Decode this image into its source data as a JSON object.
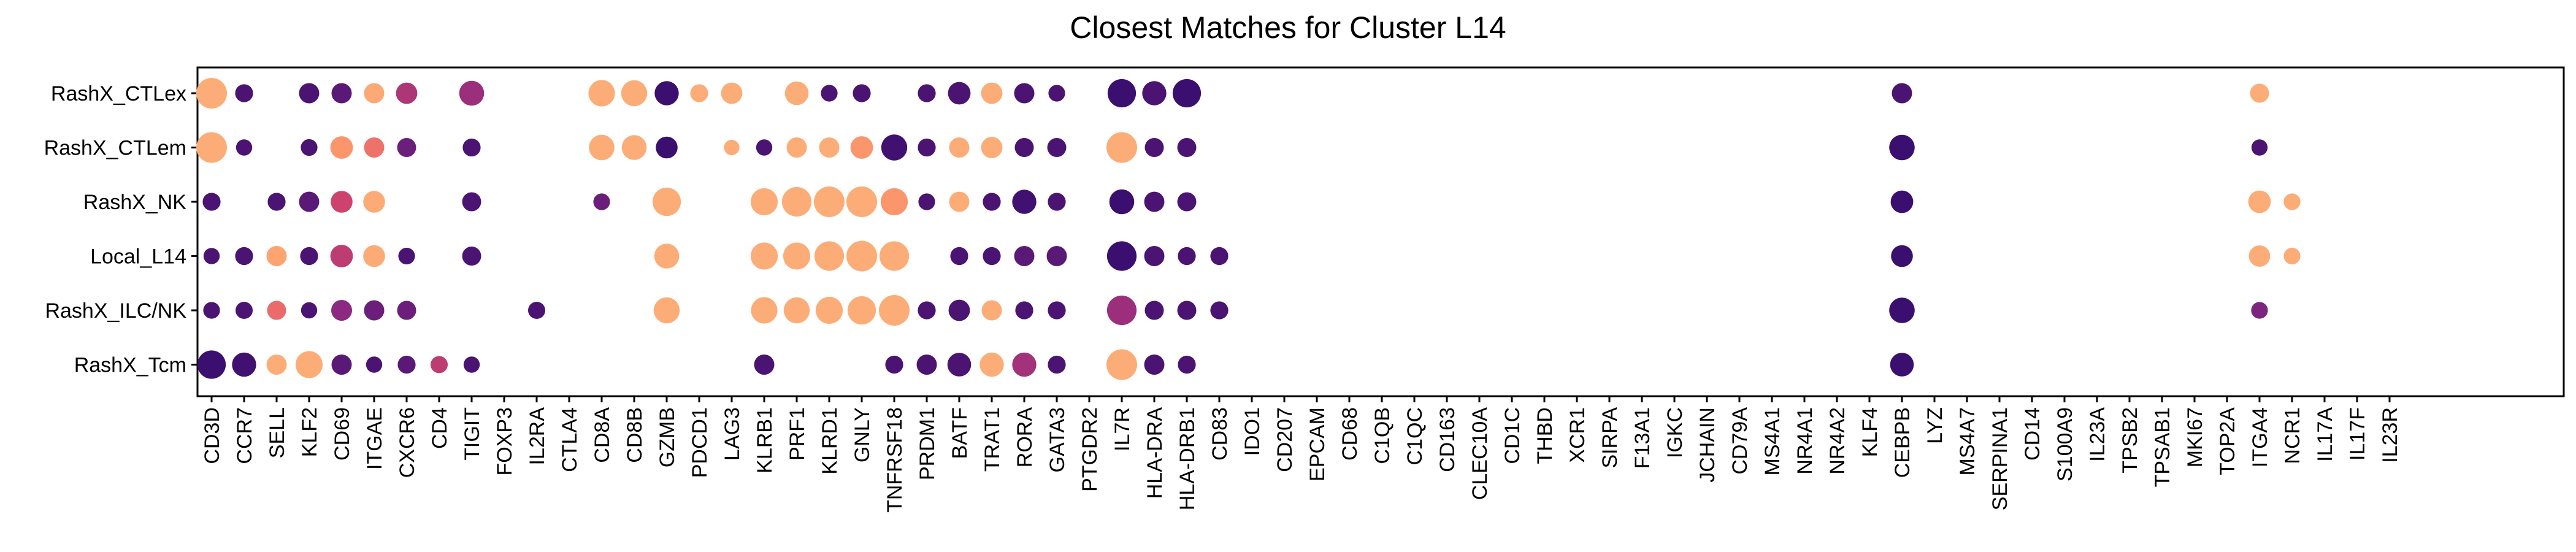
{
  "chart_data": {
    "type": "dotplot",
    "title": "Closest Matches for Cluster L14",
    "xlabel": "",
    "ylabel": "",
    "grid": false,
    "legend": "none",
    "rows": [
      "RashX_CTLex",
      "RashX_CTLem",
      "RashX_NK",
      "Local_L14",
      "RashX_ILC/NK",
      "RashX_Tcm"
    ],
    "genes": [
      "CD3D",
      "CCR7",
      "SELL",
      "KLF2",
      "CD69",
      "ITGAE",
      "CXCR6",
      "CD4",
      "TIGIT",
      "FOXP3",
      "IL2RA",
      "CTLA4",
      "CD8A",
      "CD8B",
      "GZMB",
      "PDCD1",
      "LAG3",
      "KLRB1",
      "PRF1",
      "KLRD1",
      "GNLY",
      "TNFRSF18",
      "PRDM1",
      "BATF",
      "TRAT1",
      "RORA",
      "GATA3",
      "PTGDR2",
      "IL7R",
      "HLA-DRA",
      "HLA-DRB1",
      "CD83",
      "IDO1",
      "CD207",
      "EPCAM",
      "CD68",
      "C1QB",
      "C1QC",
      "CD163",
      "CLEC10A",
      "CD1C",
      "THBD",
      "XCR1",
      "SIRPA",
      "F13A1",
      "IGKC",
      "JCHAIN",
      "CD79A",
      "MS4A1",
      "NR4A1",
      "NR4A2",
      "KLF4",
      "CEBPB",
      "LYZ",
      "MS4A7",
      "SERPINA1",
      "CD14",
      "S100A9",
      "IL23A",
      "TPSB2",
      "TPSAB1",
      "MKI67",
      "TOP2A",
      "ITGA4",
      "NCR1",
      "IL17A",
      "IL17F",
      "IL23R"
    ],
    "size_scale_note": "size = relative dot size 0-1; color = 0 (dark purple) to 1 (light orange)",
    "color_scale": [
      "#3b0f70",
      "#8c2981",
      "#de4968",
      "#fe9f6d",
      "#fcb07a"
    ],
    "points": [
      {
        "row": "RashX_CTLex",
        "gene": "CD3D",
        "size": 1.0,
        "color": 0.95
      },
      {
        "row": "RashX_CTLex",
        "gene": "CCR7",
        "size": 0.45,
        "color": 0.05
      },
      {
        "row": "RashX_CTLex",
        "gene": "KLF2",
        "size": 0.55,
        "color": 0.05
      },
      {
        "row": "RashX_CTLex",
        "gene": "CD69",
        "size": 0.55,
        "color": 0.1
      },
      {
        "row": "RashX_CTLex",
        "gene": "ITGAE",
        "size": 0.55,
        "color": 0.9
      },
      {
        "row": "RashX_CTLex",
        "gene": "CXCR6",
        "size": 0.6,
        "color": 0.35
      },
      {
        "row": "RashX_CTLex",
        "gene": "TIGIT",
        "size": 0.75,
        "color": 0.3
      },
      {
        "row": "RashX_CTLex",
        "gene": "CD8A",
        "size": 0.82,
        "color": 0.95
      },
      {
        "row": "RashX_CTLex",
        "gene": "CD8B",
        "size": 0.8,
        "color": 0.95
      },
      {
        "row": "RashX_CTLex",
        "gene": "GZMB",
        "size": 0.72,
        "color": 0.0
      },
      {
        "row": "RashX_CTLex",
        "gene": "PDCD1",
        "size": 0.45,
        "color": 0.95
      },
      {
        "row": "RashX_CTLex",
        "gene": "LAG3",
        "size": 0.6,
        "color": 0.95
      },
      {
        "row": "RashX_CTLex",
        "gene": "PRF1",
        "size": 0.7,
        "color": 0.95
      },
      {
        "row": "RashX_CTLex",
        "gene": "KLRD1",
        "size": 0.4,
        "color": 0.05
      },
      {
        "row": "RashX_CTLex",
        "gene": "GNLY",
        "size": 0.45,
        "color": 0.05
      },
      {
        "row": "RashX_CTLex",
        "gene": "PRDM1",
        "size": 0.45,
        "color": 0.05
      },
      {
        "row": "RashX_CTLex",
        "gene": "BATF",
        "size": 0.65,
        "color": 0.05
      },
      {
        "row": "RashX_CTLex",
        "gene": "TRAT1",
        "size": 0.6,
        "color": 0.95
      },
      {
        "row": "RashX_CTLex",
        "gene": "RORA",
        "size": 0.55,
        "color": 0.05
      },
      {
        "row": "RashX_CTLex",
        "gene": "GATA3",
        "size": 0.4,
        "color": 0.05
      },
      {
        "row": "RashX_CTLex",
        "gene": "IL7R",
        "size": 0.9,
        "color": 0.0
      },
      {
        "row": "RashX_CTLex",
        "gene": "HLA-DRA",
        "size": 0.72,
        "color": 0.05
      },
      {
        "row": "RashX_CTLex",
        "gene": "HLA-DRB1",
        "size": 0.9,
        "color": 0.0
      },
      {
        "row": "RashX_CTLex",
        "gene": "CEBPB",
        "size": 0.55,
        "color": 0.05
      },
      {
        "row": "RashX_CTLex",
        "gene": "ITGA4",
        "size": 0.5,
        "color": 0.95
      },
      {
        "row": "RashX_CTLem",
        "gene": "CD3D",
        "size": 1.0,
        "color": 0.95
      },
      {
        "row": "RashX_CTLem",
        "gene": "CCR7",
        "size": 0.38,
        "color": 0.05
      },
      {
        "row": "RashX_CTLem",
        "gene": "KLF2",
        "size": 0.4,
        "color": 0.05
      },
      {
        "row": "RashX_CTLem",
        "gene": "CD69",
        "size": 0.65,
        "color": 0.72
      },
      {
        "row": "RashX_CTLem",
        "gene": "ITGAE",
        "size": 0.55,
        "color": 0.62
      },
      {
        "row": "RashX_CTLem",
        "gene": "CXCR6",
        "size": 0.5,
        "color": 0.15
      },
      {
        "row": "RashX_CTLem",
        "gene": "TIGIT",
        "size": 0.45,
        "color": 0.05
      },
      {
        "row": "RashX_CTLem",
        "gene": "CD8A",
        "size": 0.78,
        "color": 0.95
      },
      {
        "row": "RashX_CTLem",
        "gene": "CD8B",
        "size": 0.75,
        "color": 0.95
      },
      {
        "row": "RashX_CTLem",
        "gene": "GZMB",
        "size": 0.62,
        "color": 0.0
      },
      {
        "row": "RashX_CTLem",
        "gene": "LAG3",
        "size": 0.35,
        "color": 0.95
      },
      {
        "row": "RashX_CTLem",
        "gene": "KLRB1",
        "size": 0.38,
        "color": 0.05
      },
      {
        "row": "RashX_CTLem",
        "gene": "PRF1",
        "size": 0.55,
        "color": 0.95
      },
      {
        "row": "RashX_CTLem",
        "gene": "KLRD1",
        "size": 0.55,
        "color": 0.95
      },
      {
        "row": "RashX_CTLem",
        "gene": "GNLY",
        "size": 0.65,
        "color": 0.72
      },
      {
        "row": "RashX_CTLem",
        "gene": "TNFRSF18",
        "size": 0.8,
        "color": 0.02
      },
      {
        "row": "RashX_CTLem",
        "gene": "PRDM1",
        "size": 0.45,
        "color": 0.05
      },
      {
        "row": "RashX_CTLem",
        "gene": "BATF",
        "size": 0.55,
        "color": 0.95
      },
      {
        "row": "RashX_CTLem",
        "gene": "TRAT1",
        "size": 0.6,
        "color": 0.95
      },
      {
        "row": "RashX_CTLem",
        "gene": "RORA",
        "size": 0.5,
        "color": 0.05
      },
      {
        "row": "RashX_CTLem",
        "gene": "GATA3",
        "size": 0.5,
        "color": 0.05
      },
      {
        "row": "RashX_CTLem",
        "gene": "IL7R",
        "size": 1.0,
        "color": 0.95
      },
      {
        "row": "RashX_CTLem",
        "gene": "HLA-DRA",
        "size": 0.5,
        "color": 0.05
      },
      {
        "row": "RashX_CTLem",
        "gene": "HLA-DRB1",
        "size": 0.5,
        "color": 0.05
      },
      {
        "row": "RashX_CTLem",
        "gene": "CEBPB",
        "size": 0.78,
        "color": 0.0
      },
      {
        "row": "RashX_CTLem",
        "gene": "ITGA4",
        "size": 0.38,
        "color": 0.05
      },
      {
        "row": "RashX_NK",
        "gene": "CD3D",
        "size": 0.45,
        "color": 0.05
      },
      {
        "row": "RashX_NK",
        "gene": "SELL",
        "size": 0.45,
        "color": 0.05
      },
      {
        "row": "RashX_NK",
        "gene": "KLF2",
        "size": 0.55,
        "color": 0.1
      },
      {
        "row": "RashX_NK",
        "gene": "CD69",
        "size": 0.62,
        "color": 0.45
      },
      {
        "row": "RashX_NK",
        "gene": "ITGAE",
        "size": 0.62,
        "color": 0.92
      },
      {
        "row": "RashX_NK",
        "gene": "TIGIT",
        "size": 0.5,
        "color": 0.05
      },
      {
        "row": "RashX_NK",
        "gene": "CD8A",
        "size": 0.4,
        "color": 0.15
      },
      {
        "row": "RashX_NK",
        "gene": "GZMB",
        "size": 0.9,
        "color": 0.95
      },
      {
        "row": "RashX_NK",
        "gene": "KLRB1",
        "size": 0.85,
        "color": 0.95
      },
      {
        "row": "RashX_NK",
        "gene": "PRF1",
        "size": 0.95,
        "color": 0.95
      },
      {
        "row": "RashX_NK",
        "gene": "KLRD1",
        "size": 1.0,
        "color": 0.95
      },
      {
        "row": "RashX_NK",
        "gene": "GNLY",
        "size": 1.0,
        "color": 0.95
      },
      {
        "row": "RashX_NK",
        "gene": "TNFRSF18",
        "size": 0.85,
        "color": 0.72
      },
      {
        "row": "RashX_NK",
        "gene": "PRDM1",
        "size": 0.4,
        "color": 0.05
      },
      {
        "row": "RashX_NK",
        "gene": "BATF",
        "size": 0.55,
        "color": 0.95
      },
      {
        "row": "RashX_NK",
        "gene": "TRAT1",
        "size": 0.45,
        "color": 0.05
      },
      {
        "row": "RashX_NK",
        "gene": "RORA",
        "size": 0.72,
        "color": 0.02
      },
      {
        "row": "RashX_NK",
        "gene": "GATA3",
        "size": 0.45,
        "color": 0.05
      },
      {
        "row": "RashX_NK",
        "gene": "IL7R",
        "size": 0.75,
        "color": 0.0
      },
      {
        "row": "RashX_NK",
        "gene": "HLA-DRA",
        "size": 0.55,
        "color": 0.05
      },
      {
        "row": "RashX_NK",
        "gene": "HLA-DRB1",
        "size": 0.5,
        "color": 0.05
      },
      {
        "row": "RashX_NK",
        "gene": "CEBPB",
        "size": 0.65,
        "color": 0.0
      },
      {
        "row": "RashX_NK",
        "gene": "ITGA4",
        "size": 0.65,
        "color": 0.95
      },
      {
        "row": "RashX_NK",
        "gene": "NCR1",
        "size": 0.4,
        "color": 0.95
      },
      {
        "row": "Local_L14",
        "gene": "CD3D",
        "size": 0.38,
        "color": 0.05
      },
      {
        "row": "Local_L14",
        "gene": "CCR7",
        "size": 0.45,
        "color": 0.05
      },
      {
        "row": "Local_L14",
        "gene": "SELL",
        "size": 0.55,
        "color": 0.82
      },
      {
        "row": "Local_L14",
        "gene": "KLF2",
        "size": 0.45,
        "color": 0.05
      },
      {
        "row": "Local_L14",
        "gene": "CD69",
        "size": 0.65,
        "color": 0.4
      },
      {
        "row": "Local_L14",
        "gene": "ITGAE",
        "size": 0.62,
        "color": 0.92
      },
      {
        "row": "Local_L14",
        "gene": "CXCR6",
        "size": 0.4,
        "color": 0.05
      },
      {
        "row": "Local_L14",
        "gene": "TIGIT",
        "size": 0.5,
        "color": 0.05
      },
      {
        "row": "Local_L14",
        "gene": "GZMB",
        "size": 0.75,
        "color": 0.95
      },
      {
        "row": "Local_L14",
        "gene": "KLRB1",
        "size": 0.85,
        "color": 0.95
      },
      {
        "row": "Local_L14",
        "gene": "PRF1",
        "size": 0.85,
        "color": 0.95
      },
      {
        "row": "Local_L14",
        "gene": "KLRD1",
        "size": 0.95,
        "color": 0.95
      },
      {
        "row": "Local_L14",
        "gene": "GNLY",
        "size": 1.0,
        "color": 0.95
      },
      {
        "row": "Local_L14",
        "gene": "TNFRSF18",
        "size": 0.95,
        "color": 0.95
      },
      {
        "row": "Local_L14",
        "gene": "BATF",
        "size": 0.45,
        "color": 0.05
      },
      {
        "row": "Local_L14",
        "gene": "TRAT1",
        "size": 0.45,
        "color": 0.05
      },
      {
        "row": "Local_L14",
        "gene": "RORA",
        "size": 0.55,
        "color": 0.1
      },
      {
        "row": "Local_L14",
        "gene": "GATA3",
        "size": 0.55,
        "color": 0.1
      },
      {
        "row": "Local_L14",
        "gene": "IL7R",
        "size": 0.95,
        "color": 0.0
      },
      {
        "row": "Local_L14",
        "gene": "HLA-DRA",
        "size": 0.55,
        "color": 0.05
      },
      {
        "row": "Local_L14",
        "gene": "HLA-DRB1",
        "size": 0.45,
        "color": 0.05
      },
      {
        "row": "Local_L14",
        "gene": "CD83",
        "size": 0.45,
        "color": 0.05
      },
      {
        "row": "Local_L14",
        "gene": "CEBPB",
        "size": 0.62,
        "color": 0.0
      },
      {
        "row": "Local_L14",
        "gene": "ITGA4",
        "size": 0.6,
        "color": 0.95
      },
      {
        "row": "Local_L14",
        "gene": "NCR1",
        "size": 0.4,
        "color": 0.95
      },
      {
        "row": "RashX_ILC/NK",
        "gene": "CD3D",
        "size": 0.4,
        "color": 0.05
      },
      {
        "row": "RashX_ILC/NK",
        "gene": "CCR7",
        "size": 0.42,
        "color": 0.05
      },
      {
        "row": "RashX_ILC/NK",
        "gene": "SELL",
        "size": 0.5,
        "color": 0.6
      },
      {
        "row": "RashX_ILC/NK",
        "gene": "KLF2",
        "size": 0.38,
        "color": 0.05
      },
      {
        "row": "RashX_ILC/NK",
        "gene": "CD69",
        "size": 0.58,
        "color": 0.25
      },
      {
        "row": "RashX_ILC/NK",
        "gene": "ITGAE",
        "size": 0.55,
        "color": 0.15
      },
      {
        "row": "RashX_ILC/NK",
        "gene": "CXCR6",
        "size": 0.5,
        "color": 0.15
      },
      {
        "row": "RashX_ILC/NK",
        "gene": "IL2RA",
        "size": 0.42,
        "color": 0.05
      },
      {
        "row": "RashX_ILC/NK",
        "gene": "GZMB",
        "size": 0.8,
        "color": 0.95
      },
      {
        "row": "RashX_ILC/NK",
        "gene": "KLRB1",
        "size": 0.82,
        "color": 0.95
      },
      {
        "row": "RashX_ILC/NK",
        "gene": "PRF1",
        "size": 0.8,
        "color": 0.95
      },
      {
        "row": "RashX_ILC/NK",
        "gene": "KLRD1",
        "size": 0.85,
        "color": 0.95
      },
      {
        "row": "RashX_ILC/NK",
        "gene": "GNLY",
        "size": 0.9,
        "color": 0.95
      },
      {
        "row": "RashX_ILC/NK",
        "gene": "TNFRSF18",
        "size": 1.0,
        "color": 0.95
      },
      {
        "row": "RashX_ILC/NK",
        "gene": "PRDM1",
        "size": 0.45,
        "color": 0.05
      },
      {
        "row": "RashX_ILC/NK",
        "gene": "BATF",
        "size": 0.6,
        "color": 0.05
      },
      {
        "row": "RashX_ILC/NK",
        "gene": "TRAT1",
        "size": 0.55,
        "color": 0.95
      },
      {
        "row": "RashX_ILC/NK",
        "gene": "RORA",
        "size": 0.45,
        "color": 0.05
      },
      {
        "row": "RashX_ILC/NK",
        "gene": "GATA3",
        "size": 0.45,
        "color": 0.05
      },
      {
        "row": "RashX_ILC/NK",
        "gene": "IL7R",
        "size": 0.95,
        "color": 0.3
      },
      {
        "row": "RashX_ILC/NK",
        "gene": "HLA-DRA",
        "size": 0.5,
        "color": 0.05
      },
      {
        "row": "RashX_ILC/NK",
        "gene": "HLA-DRB1",
        "size": 0.5,
        "color": 0.05
      },
      {
        "row": "RashX_ILC/NK",
        "gene": "CD83",
        "size": 0.45,
        "color": 0.05
      },
      {
        "row": "RashX_ILC/NK",
        "gene": "CEBPB",
        "size": 0.78,
        "color": 0.0
      },
      {
        "row": "RashX_ILC/NK",
        "gene": "ITGA4",
        "size": 0.4,
        "color": 0.2
      },
      {
        "row": "RashX_Tcm",
        "gene": "CD3D",
        "size": 0.9,
        "color": 0.0
      },
      {
        "row": "RashX_Tcm",
        "gene": "CCR7",
        "size": 0.72,
        "color": 0.02
      },
      {
        "row": "RashX_Tcm",
        "gene": "SELL",
        "size": 0.55,
        "color": 0.95
      },
      {
        "row": "RashX_Tcm",
        "gene": "KLF2",
        "size": 0.85,
        "color": 0.95
      },
      {
        "row": "RashX_Tcm",
        "gene": "CD69",
        "size": 0.55,
        "color": 0.1
      },
      {
        "row": "RashX_Tcm",
        "gene": "ITGAE",
        "size": 0.38,
        "color": 0.05
      },
      {
        "row": "RashX_Tcm",
        "gene": "CXCR6",
        "size": 0.45,
        "color": 0.1
      },
      {
        "row": "RashX_Tcm",
        "gene": "CD4",
        "size": 0.42,
        "color": 0.4
      },
      {
        "row": "RashX_Tcm",
        "gene": "TIGIT",
        "size": 0.38,
        "color": 0.05
      },
      {
        "row": "RashX_Tcm",
        "gene": "KLRB1",
        "size": 0.55,
        "color": 0.05
      },
      {
        "row": "RashX_Tcm",
        "gene": "TNFRSF18",
        "size": 0.45,
        "color": 0.05
      },
      {
        "row": "RashX_Tcm",
        "gene": "PRDM1",
        "size": 0.55,
        "color": 0.05
      },
      {
        "row": "RashX_Tcm",
        "gene": "BATF",
        "size": 0.7,
        "color": 0.05
      },
      {
        "row": "RashX_Tcm",
        "gene": "TRAT1",
        "size": 0.72,
        "color": 0.95
      },
      {
        "row": "RashX_Tcm",
        "gene": "RORA",
        "size": 0.72,
        "color": 0.32
      },
      {
        "row": "RashX_Tcm",
        "gene": "GATA3",
        "size": 0.45,
        "color": 0.05
      },
      {
        "row": "RashX_Tcm",
        "gene": "IL7R",
        "size": 1.0,
        "color": 0.95
      },
      {
        "row": "RashX_Tcm",
        "gene": "HLA-DRA",
        "size": 0.55,
        "color": 0.05
      },
      {
        "row": "RashX_Tcm",
        "gene": "HLA-DRB1",
        "size": 0.45,
        "color": 0.05
      },
      {
        "row": "RashX_Tcm",
        "gene": "CEBPB",
        "size": 0.7,
        "color": 0.0
      }
    ]
  }
}
